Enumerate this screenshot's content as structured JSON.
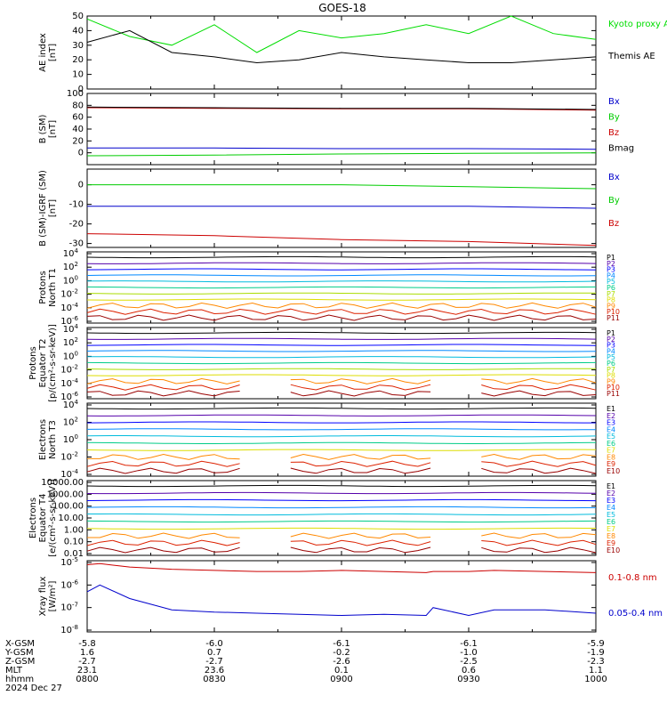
{
  "title": "GOES-18",
  "chart_data": [
    {
      "id": "ae",
      "type": "line",
      "ylabel": [
        "AE index",
        "[nT]"
      ],
      "ylim": [
        0,
        50
      ],
      "yticks": [
        "0",
        "10",
        "20",
        "30",
        "40",
        "50"
      ],
      "x_hours": [
        8.0,
        8.167,
        8.333,
        8.5,
        8.667,
        8.833,
        9.0,
        9.167,
        9.333,
        9.5,
        9.667,
        9.833,
        10.0
      ],
      "series": [
        {
          "name": "Kyoto proxy AE",
          "color": "#00dd00",
          "values": [
            48,
            36,
            30,
            44,
            25,
            40,
            35,
            38,
            44,
            38,
            50,
            38,
            34
          ]
        },
        {
          "name": "Themis AE",
          "color": "#000000",
          "values": [
            32,
            40,
            25,
            22,
            18,
            20,
            25,
            22,
            20,
            18,
            18,
            20,
            22
          ]
        }
      ]
    },
    {
      "id": "bsm",
      "type": "line",
      "ylabel": [
        "B (SM)",
        "[nT]"
      ],
      "ylim": [
        -20,
        100
      ],
      "yticks": [
        "0",
        "20",
        "40",
        "60",
        "80",
        "100"
      ],
      "x_hours": [
        8.0,
        8.5,
        9.0,
        9.5,
        10.0
      ],
      "series": [
        {
          "name": "Bx",
          "color": "#0000cc",
          "values": [
            8,
            8,
            7,
            7,
            6
          ]
        },
        {
          "name": "By",
          "color": "#00cc00",
          "values": [
            -5,
            -4,
            -2,
            -1,
            0
          ]
        },
        {
          "name": "Bz",
          "color": "#cc0000",
          "values": [
            76,
            75,
            74,
            74,
            72
          ]
        },
        {
          "name": "Bmag",
          "color": "#000000",
          "values": [
            77,
            76,
            75,
            75,
            73
          ]
        }
      ]
    },
    {
      "id": "bigrf",
      "type": "line",
      "ylabel": [
        "B (SM)-IGRF (SM)",
        "[nT]"
      ],
      "ylim": [
        -32,
        8
      ],
      "yticks": [
        "-30",
        "-20",
        "-10",
        "0"
      ],
      "x_hours": [
        8.0,
        8.5,
        9.0,
        9.5,
        10.0
      ],
      "series": [
        {
          "name": "Bx",
          "color": "#0000cc",
          "values": [
            -11,
            -11,
            -11,
            -11,
            -12
          ]
        },
        {
          "name": "By",
          "color": "#00cc00",
          "values": [
            0,
            0,
            0,
            -1,
            -2
          ]
        },
        {
          "name": "Bz",
          "color": "#cc0000",
          "values": [
            -25,
            -26,
            -28,
            -29,
            -31
          ]
        }
      ]
    },
    {
      "id": "pnt1",
      "type": "line",
      "scale": "log",
      "ylabel": [
        "Protons",
        "North T1"
      ],
      "yticks": [
        "10^4",
        "10^2",
        "10^0",
        "10^-2",
        "10^-4",
        "10^-6"
      ],
      "channels": [
        {
          "name": "P1",
          "color": "#000000"
        },
        {
          "name": "P2",
          "color": "#5500aa"
        },
        {
          "name": "P3",
          "color": "#0000ff"
        },
        {
          "name": "P4",
          "color": "#0088ff"
        },
        {
          "name": "P5",
          "color": "#00bbdd"
        },
        {
          "name": "P6",
          "color": "#00cc88"
        },
        {
          "name": "P7",
          "color": "#aadd00"
        },
        {
          "name": "P8",
          "color": "#dddd00"
        },
        {
          "name": "P9",
          "color": "#ff8800"
        },
        {
          "name": "P10",
          "color": "#dd2200"
        },
        {
          "name": "P11",
          "color": "#990000"
        }
      ]
    },
    {
      "id": "pet2",
      "type": "line",
      "scale": "log",
      "ylabel": [
        "Protons",
        "Equator T2",
        "[p/(cm²-s-sr-keV)]"
      ],
      "yticks": [
        "10^4",
        "10^2",
        "10^0",
        "10^-2",
        "10^-4",
        "10^-6"
      ],
      "channels": [
        {
          "name": "P1",
          "color": "#000000"
        },
        {
          "name": "P2",
          "color": "#5500aa"
        },
        {
          "name": "P3",
          "color": "#0000ff"
        },
        {
          "name": "P4",
          "color": "#0088ff"
        },
        {
          "name": "P5",
          "color": "#00bbdd"
        },
        {
          "name": "P6",
          "color": "#00cc88"
        },
        {
          "name": "P7",
          "color": "#aadd00"
        },
        {
          "name": "P8",
          "color": "#dddd00"
        },
        {
          "name": "P9",
          "color": "#ff8800"
        },
        {
          "name": "P10",
          "color": "#dd2200"
        },
        {
          "name": "P11",
          "color": "#990000"
        }
      ]
    },
    {
      "id": "ent3",
      "type": "line",
      "scale": "log",
      "ylabel": [
        "Electrons",
        "North T3"
      ],
      "yticks": [
        "10^4",
        "10^2",
        "10^0",
        "10^-2",
        "10^-4"
      ],
      "channels": [
        {
          "name": "E1",
          "color": "#000000"
        },
        {
          "name": "E2",
          "color": "#5500aa"
        },
        {
          "name": "E3",
          "color": "#0000ff"
        },
        {
          "name": "E4",
          "color": "#0088ff"
        },
        {
          "name": "E5",
          "color": "#00bbdd"
        },
        {
          "name": "E6",
          "color": "#00cc88"
        },
        {
          "name": "E7",
          "color": "#dddd00"
        },
        {
          "name": "E8",
          "color": "#ff8800"
        },
        {
          "name": "E9",
          "color": "#dd2200"
        },
        {
          "name": "E10",
          "color": "#990000"
        }
      ]
    },
    {
      "id": "eet4",
      "type": "line",
      "scale": "log",
      "ylabel": [
        "Electrons",
        "Equator T4",
        "[e/(cm²-s-sr-keV)]"
      ],
      "yticks": [
        "10000.00",
        "1000.00",
        "100.00",
        "10.00",
        "1.00",
        "0.10",
        "0.01"
      ],
      "channels": [
        {
          "name": "E1",
          "color": "#000000"
        },
        {
          "name": "E2",
          "color": "#5500aa"
        },
        {
          "name": "E3",
          "color": "#0000ff"
        },
        {
          "name": "E4",
          "color": "#0088ff"
        },
        {
          "name": "E5",
          "color": "#00bbdd"
        },
        {
          "name": "E6",
          "color": "#00cc88"
        },
        {
          "name": "E7",
          "color": "#dddd00"
        },
        {
          "name": "E8",
          "color": "#ff8800"
        },
        {
          "name": "E9",
          "color": "#dd2200"
        },
        {
          "name": "E10",
          "color": "#990000"
        }
      ]
    },
    {
      "id": "xray",
      "type": "line",
      "scale": "log",
      "ylabel": [
        "Xray flux",
        "[W/m²]"
      ],
      "yticks": [
        "10^-5",
        "10^-6",
        "10^-7",
        "10^-8"
      ],
      "ylim_exp": [
        -8,
        -5
      ],
      "x_hours": [
        8.0,
        8.05,
        8.167,
        8.333,
        8.5,
        8.667,
        8.833,
        9.0,
        9.167,
        9.333,
        9.36,
        9.5,
        9.6,
        9.8,
        10.0
      ],
      "series": [
        {
          "name": "0.1-0.8 nm",
          "color": "#cc0000",
          "values": [
            -5.1,
            -5.05,
            -5.2,
            -5.3,
            -5.35,
            -5.4,
            -5.4,
            -5.35,
            -5.4,
            -5.45,
            -5.4,
            -5.4,
            -5.35,
            -5.4,
            -5.45
          ]
        },
        {
          "name": "0.05-0.4 nm",
          "color": "#0000cc",
          "values": [
            -6.3,
            -6.0,
            -6.6,
            -7.1,
            -7.2,
            -7.25,
            -7.3,
            -7.35,
            -7.3,
            -7.35,
            -7.0,
            -7.35,
            -7.1,
            -7.1,
            -7.25
          ]
        }
      ]
    }
  ],
  "footer": {
    "row_labels": [
      "X-GSM",
      "Y-GSM",
      "Z-GSM",
      "MLT",
      "hhmm",
      "2024 Dec 27"
    ],
    "columns": [
      {
        "x": "-5.8",
        "y": "1.6",
        "z": "-2.7",
        "mlt": "23.1",
        "hhmm": "0800"
      },
      {
        "x": "-6.0",
        "y": "0.7",
        "z": "-2.7",
        "mlt": "23.6",
        "hhmm": "0830"
      },
      {
        "x": "-6.1",
        "y": "-0.2",
        "z": "-2.6",
        "mlt": "0.1",
        "hhmm": "0900"
      },
      {
        "x": "-6.1",
        "y": "-1.0",
        "z": "-2.5",
        "mlt": "0.6",
        "hhmm": "0930"
      },
      {
        "x": "-5.9",
        "y": "-1.9",
        "z": "-2.3",
        "mlt": "1.1",
        "hhmm": "1000"
      }
    ]
  }
}
